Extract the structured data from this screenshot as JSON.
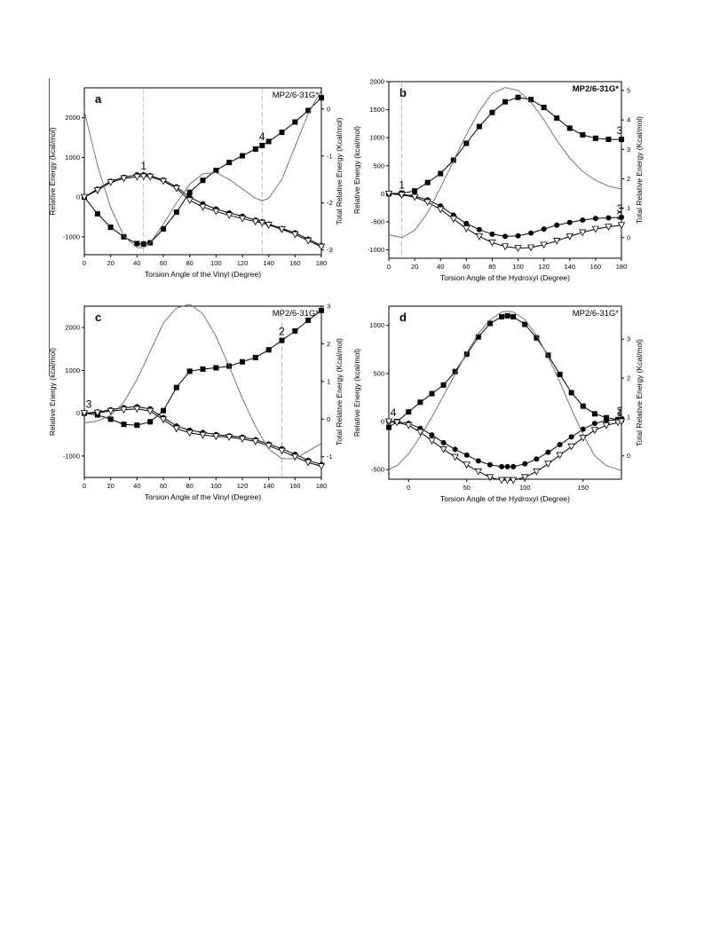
{
  "colors": {
    "axis": "#000000",
    "smooth_line": "#666666",
    "dashed": "#aaaaaa",
    "marker_fill": "#000000",
    "triangle_fill": "#ffffff"
  },
  "series_legend": [
    {
      "marker": "square-filled"
    },
    {
      "marker": "circle-filled"
    },
    {
      "marker": "triangle-down-open"
    },
    {
      "marker": "none"
    }
  ],
  "chart_data": [
    {
      "type": "line",
      "panel_label": "a",
      "method_label": "MP2/6-31G*",
      "xlabel": "Torsion Angle of the Vinyl (Degree)",
      "ylabel": "Relative Energy (kcal/mol)",
      "y2label": "Total Relative Energy (Kcal/mol)",
      "xlim": [
        0,
        180
      ],
      "ylim": [
        -1450,
        2750
      ],
      "y2lim": [
        -3.1,
        0.45
      ],
      "xticks": [
        0,
        20,
        40,
        60,
        80,
        100,
        120,
        140,
        160,
        180
      ],
      "yticks": [
        -1000,
        0,
        1000,
        2000
      ],
      "y2ticks": [
        -3,
        -2,
        -1,
        0
      ],
      "x": [
        0,
        10,
        20,
        30,
        40,
        45,
        50,
        60,
        70,
        80,
        90,
        100,
        110,
        120,
        130,
        135,
        140,
        150,
        160,
        170,
        180
      ],
      "series": [
        {
          "values": [
            0,
            -420,
            -760,
            -1000,
            -1170,
            -1180,
            -1150,
            -800,
            -380,
            120,
            420,
            670,
            870,
            1040,
            1210,
            1300,
            1400,
            1630,
            1890,
            2180,
            2500
          ]
        },
        {
          "values": [
            0,
            200,
            400,
            500,
            560,
            560,
            540,
            430,
            260,
            0,
            -170,
            -300,
            -400,
            -480,
            -580,
            -620,
            -680,
            -790,
            -900,
            -1060,
            -1220
          ]
        },
        {
          "values": [
            0,
            170,
            370,
            470,
            510,
            520,
            510,
            400,
            220,
            -80,
            -250,
            -360,
            -460,
            -540,
            -620,
            -650,
            -700,
            -810,
            -940,
            -1100,
            -1250
          ]
        },
        {
          "axis": "right",
          "values": [
            -0.05,
            -1.2,
            -2.1,
            -2.7,
            -2.95,
            -2.95,
            -2.85,
            -2.45,
            -2.0,
            -1.6,
            -1.38,
            -1.35,
            -1.5,
            -1.7,
            -1.9,
            -1.95,
            -1.9,
            -1.5,
            -0.8,
            -0.1,
            0.4
          ]
        }
      ],
      "annotations": [
        {
          "text": "1",
          "x": 45,
          "y": 560
        },
        {
          "text": "4",
          "x": 135,
          "y": 1300
        }
      ],
      "vlines": [
        45,
        135
      ]
    },
    {
      "type": "line",
      "panel_label": "b",
      "method_label": "MP2/6-31G*",
      "xlabel": "Torsion Angle of the Hydroxyl (Degree)",
      "ylabel": "Relative Energy (kcal/mol)",
      "y2label": "Total Relative Energy (Kcal/mol)",
      "xlim": [
        0,
        180
      ],
      "ylim": [
        -1150,
        2000
      ],
      "y2lim": [
        -0.7,
        5.3
      ],
      "xticks": [
        0,
        20,
        40,
        60,
        80,
        100,
        120,
        140,
        160,
        180
      ],
      "yticks": [
        -1000,
        -500,
        0,
        500,
        1000,
        1500,
        2000
      ],
      "y2ticks": [
        0,
        1,
        2,
        3,
        4,
        5
      ],
      "x": [
        0,
        10,
        20,
        30,
        40,
        50,
        60,
        70,
        80,
        90,
        100,
        110,
        120,
        130,
        140,
        150,
        160,
        170,
        180
      ],
      "series": [
        {
          "values": [
            0,
            10,
            50,
            200,
            360,
            600,
            900,
            1200,
            1450,
            1640,
            1720,
            1680,
            1540,
            1350,
            1170,
            1050,
            990,
            970,
            970
          ]
        },
        {
          "values": [
            0,
            -10,
            -40,
            -110,
            -220,
            -380,
            -530,
            -640,
            -720,
            -760,
            -750,
            -700,
            -630,
            -560,
            -510,
            -470,
            -440,
            -430,
            -420
          ]
        },
        {
          "values": [
            0,
            -20,
            -60,
            -150,
            -280,
            -450,
            -620,
            -760,
            -870,
            -940,
            -970,
            -960,
            -910,
            -840,
            -760,
            -690,
            -630,
            -590,
            -560
          ]
        },
        {
          "axis": "right",
          "values": [
            0.1,
            0.0,
            0.25,
            0.85,
            1.7,
            2.6,
            3.5,
            4.3,
            4.9,
            5.1,
            5.0,
            4.6,
            4.0,
            3.3,
            2.7,
            2.25,
            1.95,
            1.75,
            1.65
          ]
        }
      ],
      "annotations": [
        {
          "text": "1",
          "x": 10,
          "y": 0
        },
        {
          "text": "3",
          "x": 180,
          "y": 970
        },
        {
          "text": "3",
          "x": 180,
          "y": -420
        },
        {
          "text": "3",
          "x": 180,
          "y": -560
        }
      ],
      "vlines": [
        10
      ]
    },
    {
      "type": "line",
      "panel_label": "c",
      "method_label": "MP2/6-31G*",
      "xlabel": "Torsion Angle of the Vinyl (Degree)",
      "ylabel": "Relative Energy (kcal/mol)",
      "y2label": "Total Relative Energy (Kcal/mol)",
      "xlim": [
        0,
        180
      ],
      "ylim": [
        -1500,
        2500
      ],
      "y2lim": [
        -1.55,
        3.0
      ],
      "xticks": [
        0,
        20,
        40,
        60,
        80,
        100,
        120,
        140,
        160,
        180
      ],
      "yticks": [
        -1000,
        0,
        1000,
        2000
      ],
      "y2ticks": [
        -1,
        0,
        1,
        2,
        3
      ],
      "x": [
        0,
        10,
        20,
        30,
        40,
        50,
        60,
        70,
        80,
        90,
        100,
        110,
        120,
        130,
        140,
        150,
        160,
        170,
        180
      ],
      "series": [
        {
          "values": [
            0,
            -40,
            -140,
            -260,
            -280,
            -200,
            60,
            600,
            980,
            1030,
            1060,
            1100,
            1200,
            1300,
            1480,
            1700,
            1920,
            2170,
            2400
          ]
        },
        {
          "values": [
            0,
            30,
            80,
            130,
            150,
            100,
            -100,
            -300,
            -400,
            -450,
            -500,
            -530,
            -560,
            -620,
            -720,
            -830,
            -960,
            -1100,
            -1200
          ]
        },
        {
          "values": [
            0,
            10,
            50,
            80,
            100,
            50,
            -150,
            -360,
            -460,
            -510,
            -540,
            -560,
            -600,
            -660,
            -760,
            -880,
            -1020,
            -1150,
            -1240
          ]
        },
        {
          "axis": "right",
          "values": [
            -0.1,
            -0.05,
            0.1,
            0.45,
            1.05,
            1.8,
            2.55,
            2.95,
            3.05,
            2.8,
            2.2,
            1.4,
            0.55,
            -0.2,
            -0.8,
            -1.05,
            -1.05,
            -0.85,
            -0.65
          ]
        }
      ],
      "annotations": [
        {
          "text": "3",
          "x": 0,
          "y": 0
        },
        {
          "text": "2",
          "x": 150,
          "y": 1700
        }
      ],
      "vlines": [
        150
      ]
    },
    {
      "type": "line",
      "panel_label": "d",
      "method_label": "MP2/6-31G*",
      "xlabel": "Torsion Angle of the Hydroxyl (Degree)",
      "ylabel": "Relative Energy (kcal/mol)",
      "y2label": "Total Relative Energy (Kcal/mol)",
      "xlim": [
        -17,
        183
      ],
      "ylim": [
        -600,
        1200
      ],
      "y2lim": [
        -0.6,
        3.85
      ],
      "xticks": [
        0,
        50,
        100,
        150
      ],
      "yticks": [
        -500,
        0,
        500,
        1000
      ],
      "y2ticks": [
        0,
        1,
        2,
        3
      ],
      "x": [
        -17,
        -10,
        0,
        10,
        20,
        30,
        40,
        50,
        60,
        70,
        80,
        85,
        90,
        100,
        110,
        120,
        130,
        140,
        150,
        160,
        170,
        180,
        183
      ],
      "series": [
        {
          "values": [
            -60,
            0,
            100,
            200,
            290,
            380,
            520,
            700,
            880,
            1020,
            1090,
            1100,
            1090,
            1010,
            870,
            690,
            490,
            300,
            160,
            80,
            40,
            20,
            20
          ]
        },
        {
          "values": [
            0,
            0,
            -20,
            -70,
            -140,
            -220,
            -290,
            -350,
            -410,
            -450,
            -470,
            -470,
            -470,
            -440,
            -390,
            -320,
            -240,
            -160,
            -80,
            -20,
            10,
            20,
            20
          ]
        },
        {
          "values": [
            0,
            -10,
            -40,
            -110,
            -200,
            -290,
            -370,
            -450,
            -520,
            -580,
            -610,
            -610,
            -610,
            -580,
            -520,
            -440,
            -350,
            -260,
            -170,
            -90,
            -40,
            -10,
            0
          ]
        },
        {
          "axis": "right",
          "values": [
            -0.35,
            -0.25,
            0.05,
            0.5,
            1.0,
            1.55,
            2.1,
            2.65,
            3.15,
            3.5,
            3.7,
            3.72,
            3.7,
            3.5,
            3.1,
            2.55,
            1.9,
            1.2,
            0.55,
            0.0,
            -0.25,
            -0.35,
            -0.38
          ]
        }
      ],
      "annotations": [
        {
          "text": "4",
          "x": -17,
          "y": 0
        },
        {
          "text": "1",
          "x": 183,
          "y": 0
        },
        {
          "text": "2",
          "x": 183,
          "y": 20
        }
      ],
      "vlines": []
    }
  ]
}
